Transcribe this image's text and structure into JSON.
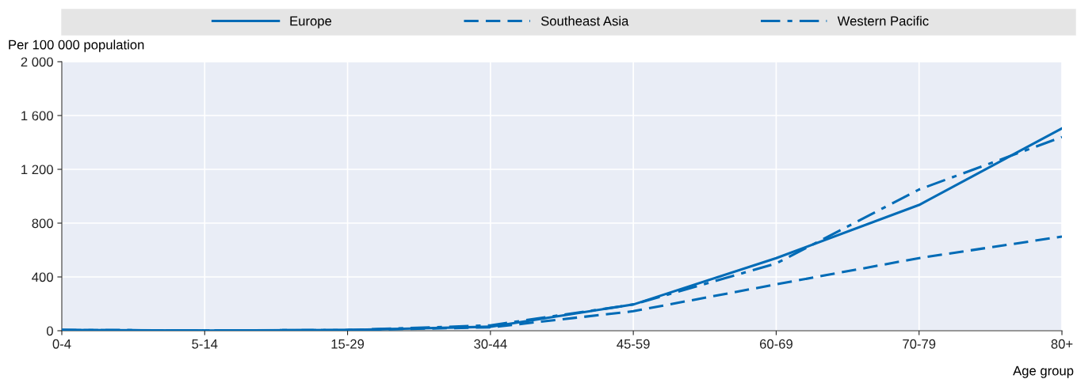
{
  "chart_data": {
    "type": "line",
    "ylabel": "Per 100 000 population",
    "xlabel": "Age group",
    "categories": [
      "0-4",
      "5-14",
      "15-29",
      "30-44",
      "45-59",
      "60-69",
      "70-79",
      "80+"
    ],
    "series": [
      {
        "name": "Europe",
        "color": "#006bb6",
        "line_style": "solid",
        "values": [
          5,
          2,
          5,
          30,
          195,
          540,
          935,
          1505
        ]
      },
      {
        "name": "Southeast Asia",
        "color": "#006bb6",
        "line_style": "dashed",
        "values": [
          5,
          2,
          5,
          25,
          145,
          345,
          540,
          700
        ]
      },
      {
        "name": "Western Pacific",
        "color": "#006bb6",
        "line_style": "dashdot",
        "values": [
          5,
          2,
          5,
          40,
          195,
          500,
          1050,
          1440
        ]
      }
    ],
    "ylim": [
      0,
      2000
    ],
    "yticks": [
      0,
      {
        "value": 400,
        "label": "400"
      },
      {
        "value": 800,
        "label": "800"
      },
      {
        "value": 1200,
        "label": "1 200"
      },
      {
        "value": 1600,
        "label": "1 600"
      },
      {
        "value": 2000,
        "label": "2 000"
      }
    ],
    "grid": true,
    "legend": "top",
    "marker": "none"
  }
}
